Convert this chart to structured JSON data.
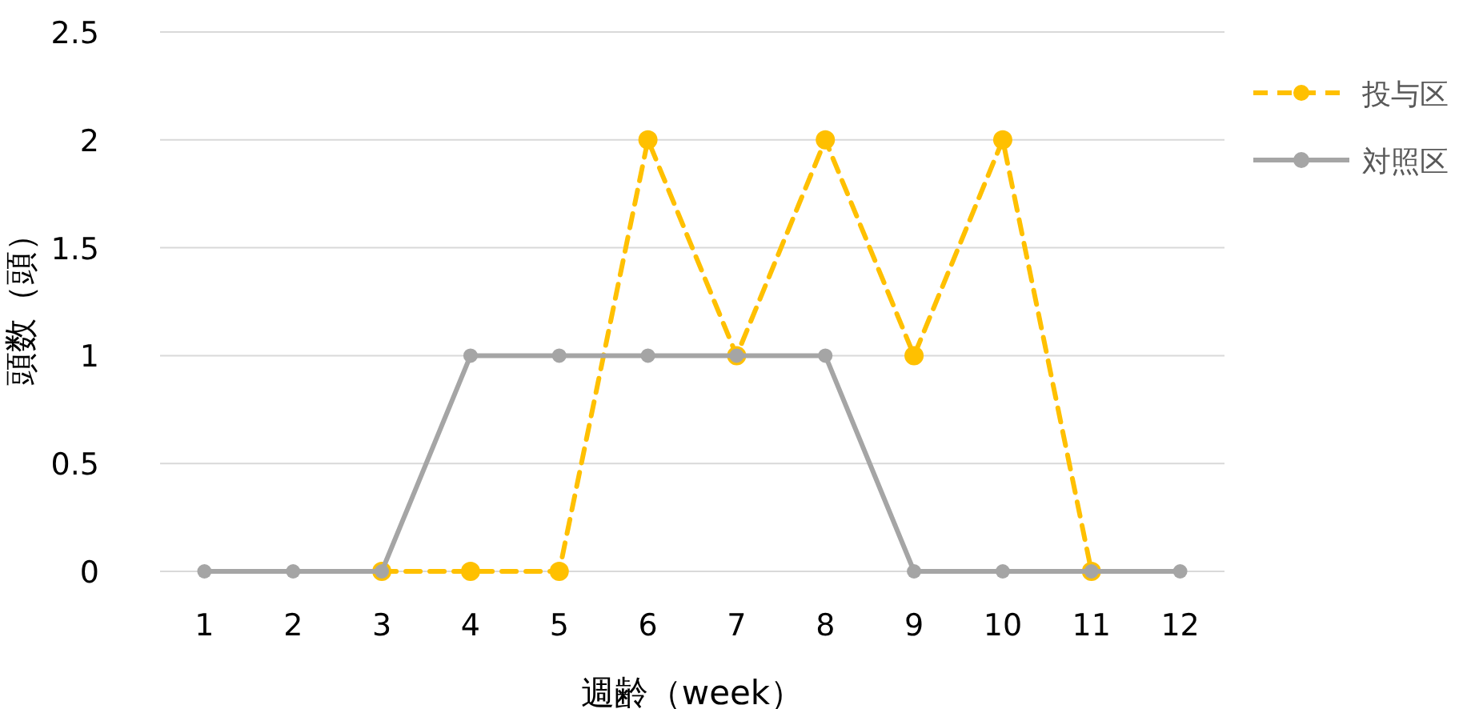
{
  "chart_data": {
    "type": "line",
    "xlabel": "週齢（week）",
    "ylabel": "頭数（頭）",
    "categories": [
      "1",
      "2",
      "3",
      "4",
      "5",
      "6",
      "7",
      "8",
      "9",
      "10",
      "11",
      "12"
    ],
    "ylim": [
      0,
      2.5
    ],
    "yticks": [
      0,
      0.5,
      1,
      1.5,
      2,
      2.5
    ],
    "grid": "y",
    "legend": "right",
    "marker": "circle",
    "series": [
      {
        "name": "投与区",
        "color": "#ffc000",
        "line_style": "dashed",
        "values": [
          null,
          null,
          0,
          0,
          0,
          2,
          1,
          2,
          1,
          2,
          0,
          null
        ]
      },
      {
        "name": "対照区",
        "color": "#a5a5a5",
        "line_style": "solid",
        "values": [
          0,
          0,
          0,
          1,
          1,
          1,
          1,
          1,
          0,
          0,
          0,
          0
        ]
      }
    ]
  }
}
